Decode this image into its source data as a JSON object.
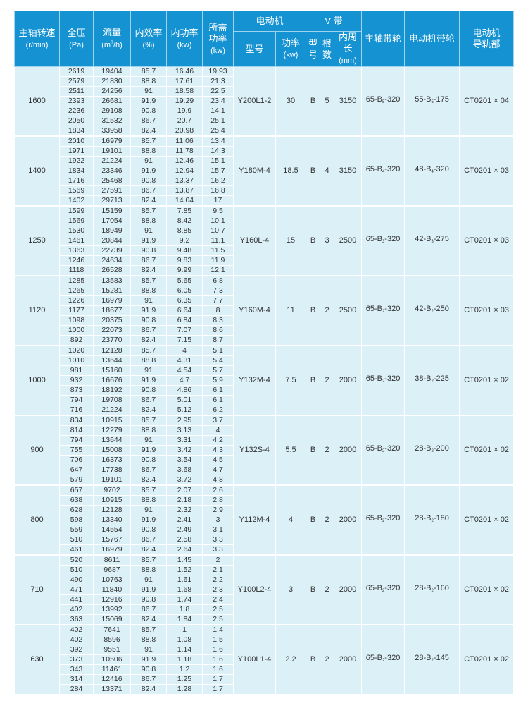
{
  "header": {
    "speed": {
      "label": "主轴转速",
      "unit": "(r/min)"
    },
    "pressure": {
      "label": "全压",
      "unit": "(Pa)"
    },
    "flow": {
      "label": "流量",
      "unit_pre": "(m",
      "unit_sup": "3",
      "unit_post": "/h)"
    },
    "efficiency": {
      "label": "内效率",
      "unit": "(%)"
    },
    "inner_power": {
      "label": "内功率",
      "unit": "(kw)"
    },
    "required_power": {
      "label1": "所需",
      "label2": "功率",
      "unit": "(kw)"
    },
    "motor": {
      "label": "电动机",
      "model": "型号",
      "power": "功率",
      "power_unit": "(kw)"
    },
    "vbelt": {
      "label": "V 带",
      "type1": "型",
      "type2": "号",
      "count1": "根",
      "count2": "数",
      "length": "内周长",
      "length_unit": "(mm)"
    },
    "spindle_pulley": "主轴带轮",
    "motor_pulley": "电动机带轮",
    "motor_rail": {
      "label1": "电动机",
      "label2": "导轨部"
    }
  },
  "groups": [
    {
      "speed": "1600",
      "motor_model": "Y200L1-2",
      "motor_power": "30",
      "belt_type": "B",
      "belt_count": "5",
      "belt_length": "3150",
      "spindle_pulley": {
        "pre": "65-B",
        "sub": "5",
        "post": "-320"
      },
      "motor_pulley": {
        "pre": "55-B",
        "sub": "5",
        "post": "-175"
      },
      "rail": "CT0201 × 04",
      "rows": [
        [
          "2619",
          "19404",
          "85.7",
          "16.46",
          "19.93"
        ],
        [
          "2579",
          "21830",
          "88.8",
          "17.61",
          "21.3"
        ],
        [
          "2511",
          "24256",
          "91",
          "18.58",
          "22.5"
        ],
        [
          "2393",
          "26681",
          "91.9",
          "19.29",
          "23.4"
        ],
        [
          "2236",
          "29108",
          "90.8",
          "19.9",
          "14.1"
        ],
        [
          "2050",
          "31532",
          "86.7",
          "20.7",
          "25.1"
        ],
        [
          "1834",
          "33958",
          "82.4",
          "20.98",
          "25.4"
        ]
      ]
    },
    {
      "speed": "1400",
      "motor_model": "Y180M-4",
      "motor_power": "18.5",
      "belt_type": "B",
      "belt_count": "4",
      "belt_length": "3150",
      "spindle_pulley": {
        "pre": "65-B",
        "sub": "4",
        "post": "-320"
      },
      "motor_pulley": {
        "pre": "48-B",
        "sub": "4",
        "post": "-320"
      },
      "rail": "CT0201 × 03",
      "rows": [
        [
          "2010",
          "16979",
          "85.7",
          "11.06",
          "13.4"
        ],
        [
          "1971",
          "19101",
          "88.8",
          "11.78",
          "14.3"
        ],
        [
          "1922",
          "21224",
          "91",
          "12.46",
          "15.1"
        ],
        [
          "1834",
          "23346",
          "91.9",
          "12.94",
          "15.7"
        ],
        [
          "1716",
          "25468",
          "90.8",
          "13.37",
          "16.2"
        ],
        [
          "1569",
          "27591",
          "86.7",
          "13.87",
          "16.8"
        ],
        [
          "1402",
          "29713",
          "82.4",
          "14.04",
          "17"
        ]
      ]
    },
    {
      "speed": "1250",
      "motor_model": "Y160L-4",
      "motor_power": "15",
      "belt_type": "B",
      "belt_count": "3",
      "belt_length": "2500",
      "spindle_pulley": {
        "pre": "65-B",
        "sub": "3",
        "post": "-320"
      },
      "motor_pulley": {
        "pre": "42-B",
        "sub": "3",
        "post": "-275"
      },
      "rail": "CT0201 × 03",
      "rows": [
        [
          "1599",
          "15159",
          "85.7",
          "7.85",
          "9.5"
        ],
        [
          "1569",
          "17054",
          "88.8",
          "8.42",
          "10.1"
        ],
        [
          "1530",
          "18949",
          "91",
          "8.85",
          "10.7"
        ],
        [
          "1461",
          "20844",
          "91.9",
          "9.2",
          "11.1"
        ],
        [
          "1363",
          "22739",
          "90.8",
          "9.48",
          "11.5"
        ],
        [
          "1246",
          "24634",
          "86.7",
          "9.83",
          "11.9"
        ],
        [
          "1118",
          "26528",
          "82.4",
          "9.99",
          "12.1"
        ]
      ]
    },
    {
      "speed": "1120",
      "motor_model": "Y160M-4",
      "motor_power": "11",
      "belt_type": "B",
      "belt_count": "2",
      "belt_length": "2500",
      "spindle_pulley": {
        "pre": "65-B",
        "sub": "2",
        "post": "-320"
      },
      "motor_pulley": {
        "pre": "42-B",
        "sub": "2",
        "post": "-250"
      },
      "rail": "CT0201 × 03",
      "rows": [
        [
          "1285",
          "13583",
          "85.7",
          "5.65",
          "6.8"
        ],
        [
          "1265",
          "15281",
          "88.8",
          "6.05",
          "7.3"
        ],
        [
          "1226",
          "16979",
          "91",
          "6.35",
          "7.7"
        ],
        [
          "1177",
          "18677",
          "91.9",
          "6.64",
          "8"
        ],
        [
          "1098",
          "20375",
          "90.8",
          "6.84",
          "8.3"
        ],
        [
          "1000",
          "22073",
          "86.7",
          "7.07",
          "8.6"
        ],
        [
          "892",
          "23770",
          "82.4",
          "7.15",
          "8.7"
        ]
      ]
    },
    {
      "speed": "1000",
      "motor_model": "Y132M-4",
      "motor_power": "7.5",
      "belt_type": "B",
      "belt_count": "2",
      "belt_length": "2000",
      "spindle_pulley": {
        "pre": "65-B",
        "sub": "2",
        "post": "-320"
      },
      "motor_pulley": {
        "pre": "38-B",
        "sub": "2",
        "post": "-225"
      },
      "rail": "CT0201 × 02",
      "rows": [
        [
          "1020",
          "12128",
          "85.7",
          "4",
          "5.1"
        ],
        [
          "1010",
          "13644",
          "88.8",
          "4.31",
          "5.4"
        ],
        [
          "981",
          "15160",
          "91",
          "4.54",
          "5.7"
        ],
        [
          "932",
          "16676",
          "91.9",
          "4.7",
          "5.9"
        ],
        [
          "873",
          "18192",
          "90.8",
          "4.86",
          "6.1"
        ],
        [
          "794",
          "19708",
          "86.7",
          "5.01",
          "6.1"
        ],
        [
          "716",
          "21224",
          "82.4",
          "5.12",
          "6.2"
        ]
      ]
    },
    {
      "speed": "900",
      "motor_model": "Y132S-4",
      "motor_power": "5.5",
      "belt_type": "B",
      "belt_count": "2",
      "belt_length": "2000",
      "spindle_pulley": {
        "pre": "65-B",
        "sub": "2",
        "post": "-320"
      },
      "motor_pulley": {
        "pre": "28-B",
        "sub": "2",
        "post": "-200"
      },
      "rail": "CT0201 × 02",
      "rows": [
        [
          "834",
          "10915",
          "85.7",
          "2.95",
          "3.7"
        ],
        [
          "814",
          "12279",
          "88.8",
          "3.13",
          "4"
        ],
        [
          "794",
          "13644",
          "91",
          "3.31",
          "4.2"
        ],
        [
          "755",
          "15008",
          "91.9",
          "3.42",
          "4.3"
        ],
        [
          "706",
          "16373",
          "90.8",
          "3.54",
          "4.5"
        ],
        [
          "647",
          "17738",
          "86.7",
          "3.68",
          "4.7"
        ],
        [
          "579",
          "19101",
          "82.4",
          "3.72",
          "4.8"
        ]
      ]
    },
    {
      "speed": "800",
      "motor_model": "Y112M-4",
      "motor_power": "4",
      "belt_type": "B",
      "belt_count": "2",
      "belt_length": "2000",
      "spindle_pulley": {
        "pre": "65-B",
        "sub": "2",
        "post": "-320"
      },
      "motor_pulley": {
        "pre": "28-B",
        "sub": "2",
        "post": "-180"
      },
      "rail": "CT0201 × 02",
      "rows": [
        [
          "657",
          "9702",
          "85.7",
          "2.07",
          "2.6"
        ],
        [
          "638",
          "10915",
          "88.8",
          "2.18",
          "2.8"
        ],
        [
          "628",
          "12128",
          "91",
          "2.32",
          "2.9"
        ],
        [
          "598",
          "13340",
          "91.9",
          "2.41",
          "3"
        ],
        [
          "559",
          "14554",
          "90.8",
          "2.49",
          "3.1"
        ],
        [
          "510",
          "15767",
          "86.7",
          "2.58",
          "3.3"
        ],
        [
          "461",
          "16979",
          "82.4",
          "2.64",
          "3.3"
        ]
      ]
    },
    {
      "speed": "710",
      "motor_model": "Y100L2-4",
      "motor_power": "3",
      "belt_type": "B",
      "belt_count": "2",
      "belt_length": "2000",
      "spindle_pulley": {
        "pre": "65-B",
        "sub": "2",
        "post": "-320"
      },
      "motor_pulley": {
        "pre": "28-B",
        "sub": "2",
        "post": "-160"
      },
      "rail": "CT0201 × 02",
      "rows": [
        [
          "520",
          "8611",
          "85.7",
          "1.45",
          "2"
        ],
        [
          "510",
          "9687",
          "88.8",
          "1.52",
          "2.1"
        ],
        [
          "490",
          "10763",
          "91",
          "1.61",
          "2.2"
        ],
        [
          "471",
          "11840",
          "91.9",
          "1.68",
          "2.3"
        ],
        [
          "441",
          "12916",
          "90.8",
          "1.74",
          "2.4"
        ],
        [
          "402",
          "13992",
          "86.7",
          "1.8",
          "2.5"
        ],
        [
          "363",
          "15069",
          "82.4",
          "1.84",
          "2.5"
        ]
      ]
    },
    {
      "speed": "630",
      "motor_model": "Y100L1-4",
      "motor_power": "2.2",
      "belt_type": "B",
      "belt_count": "2",
      "belt_length": "2000",
      "spindle_pulley": {
        "pre": "65-B",
        "sub": "2",
        "post": "-320"
      },
      "motor_pulley": {
        "pre": "28-B",
        "sub": "2",
        "post": "-145"
      },
      "rail": "CT0201 × 02",
      "rows": [
        [
          "402",
          "7641",
          "85.7",
          "1",
          "1.4"
        ],
        [
          "402",
          "8596",
          "88.8",
          "1.08",
          "1.5"
        ],
        [
          "392",
          "9551",
          "91",
          "1.14",
          "1.6"
        ],
        [
          "373",
          "10506",
          "91.9",
          "1.18",
          "1.6"
        ],
        [
          "343",
          "11461",
          "90.8",
          "1.2",
          "1.6"
        ],
        [
          "314",
          "12416",
          "86.7",
          "1.25",
          "1.7"
        ],
        [
          "284",
          "13371",
          "82.4",
          "1.28",
          "1.7"
        ]
      ]
    }
  ]
}
